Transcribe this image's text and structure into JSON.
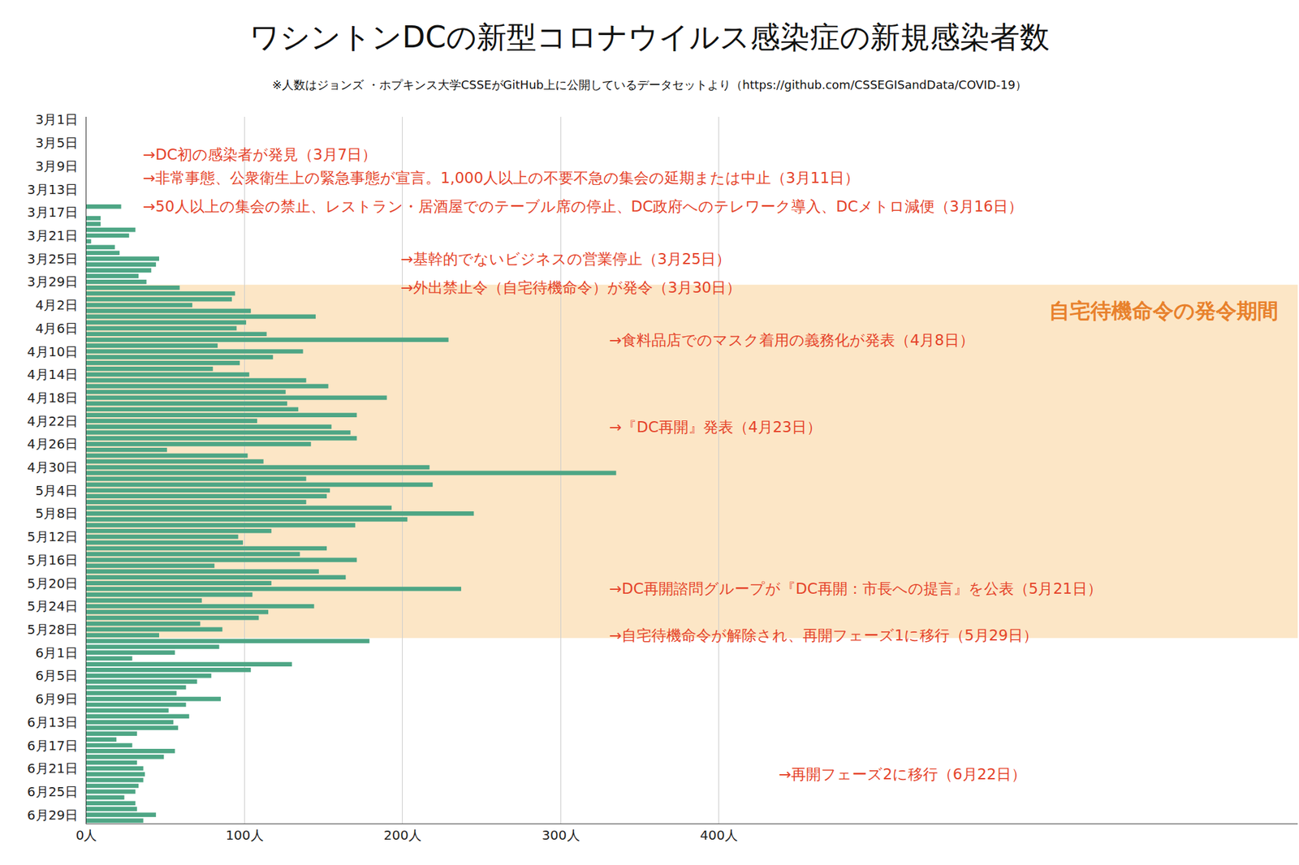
{
  "chart_data": {
    "type": "bar",
    "orientation": "horizontal",
    "title": "ワシントンDCの新型コロナウイルス感染症の新規感染者数",
    "subtitle": "※人数はジョンズ ・ホプキンス大学CSSEがGitHub上に公開しているデータセットより（https://github.com/CSSEGISandData/COVID-19）",
    "categories": [
      "3月1日",
      null,
      null,
      null,
      "3月5日",
      null,
      null,
      null,
      "3月9日",
      null,
      null,
      null,
      "3月13日",
      null,
      null,
      null,
      "3月17日",
      null,
      null,
      null,
      "3月21日",
      null,
      null,
      null,
      "3月25日",
      null,
      null,
      null,
      "3月29日",
      null,
      null,
      null,
      "4月2日",
      null,
      null,
      null,
      "4月6日",
      null,
      null,
      null,
      "4月10日",
      null,
      null,
      null,
      "4月14日",
      null,
      null,
      null,
      "4月18日",
      null,
      null,
      null,
      "4月22日",
      null,
      null,
      null,
      "4月26日",
      null,
      null,
      null,
      "4月30日",
      null,
      null,
      null,
      "5月4日",
      null,
      null,
      null,
      "5月8日",
      null,
      null,
      null,
      "5月12日",
      null,
      null,
      null,
      "5月16日",
      null,
      null,
      null,
      "5月20日",
      null,
      null,
      null,
      "5月24日",
      null,
      null,
      null,
      "5月28日",
      null,
      null,
      null,
      "6月1日",
      null,
      null,
      null,
      "6月5日",
      null,
      null,
      null,
      "6月9日",
      null,
      null,
      null,
      "6月13日",
      null,
      null,
      null,
      "6月17日",
      null,
      null,
      null,
      "6月21日",
      null,
      null,
      null,
      "6月25日",
      null,
      null,
      null,
      "6月29日",
      null
    ],
    "values": [
      0,
      0,
      0,
      0,
      0,
      0,
      0,
      0,
      0,
      0,
      0,
      0,
      0,
      0,
      0,
      22,
      0,
      9,
      9,
      31,
      27,
      3,
      18,
      21,
      46,
      44,
      41,
      33,
      38,
      59,
      94,
      92,
      67,
      104,
      145,
      101,
      95,
      114,
      229,
      83,
      137,
      118,
      97,
      80,
      103,
      139,
      153,
      126,
      190,
      127,
      134,
      171,
      108,
      155,
      167,
      171,
      142,
      51,
      102,
      112,
      217,
      335,
      139,
      219,
      154,
      152,
      139,
      193,
      245,
      203,
      170,
      117,
      96,
      99,
      152,
      135,
      171,
      81,
      147,
      164,
      117,
      237,
      105,
      73,
      144,
      115,
      109,
      72,
      86,
      46,
      179,
      84,
      56,
      29,
      130,
      104,
      79,
      70,
      63,
      57,
      85,
      63,
      52,
      65,
      55,
      58,
      32,
      19,
      29,
      56,
      49,
      32,
      36,
      37,
      36,
      33,
      31,
      24,
      31,
      32,
      44,
      36
    ],
    "color": "#4ea685",
    "xlim": [
      0,
      766
    ],
    "xticks": [
      {
        "value": 0,
        "label": "0人"
      },
      {
        "value": 100,
        "label": "100人"
      },
      {
        "value": 200,
        "label": "200人"
      },
      {
        "value": 300,
        "label": "300人"
      },
      {
        "value": 400,
        "label": "400人"
      }
    ],
    "grid": true,
    "shaded_period": {
      "label": "自宅待機命令の発令期間",
      "start": "3月30日",
      "end": "5月29日"
    },
    "annotations": [
      {
        "text": "→DC初の感染者が発見（3月7日）",
        "date": "3月7日"
      },
      {
        "text": "→非常事態、公衆衛生上の緊急事態が宣言。1,000人以上の不要不急の集会の延期または中止（3月11日）",
        "date": "3月11日"
      },
      {
        "text": "→50人以上の集会の禁止、レストラン・居酒屋でのテーブル席の停止、DC政府へのテレワーク導入、DCメトロ減便（3月16日）",
        "date": "3月16日"
      },
      {
        "text": "→基幹的でないビジネスの営業停止（3月25日）",
        "date": "3月25日"
      },
      {
        "text": "→外出禁止令（自宅待機命令）が発令（3月30日）",
        "date": "3月30日"
      },
      {
        "text": "→食料品店でのマスク着用の義務化が発表（4月8日）",
        "date": "4月8日"
      },
      {
        "text": "→『DC再開』発表（4月23日）",
        "date": "4月23日"
      },
      {
        "text": "→DC再開諮問グループが『DC再開：市長への提言』を公表（5月21日）",
        "date": "5月21日"
      },
      {
        "text": "→自宅待機命令が解除され、再開フェーズ1に移行（5月29日）",
        "date": "5月29日"
      },
      {
        "text": "→再開フェーズ2に移行（6月22日）",
        "date": "6月22日"
      }
    ]
  }
}
